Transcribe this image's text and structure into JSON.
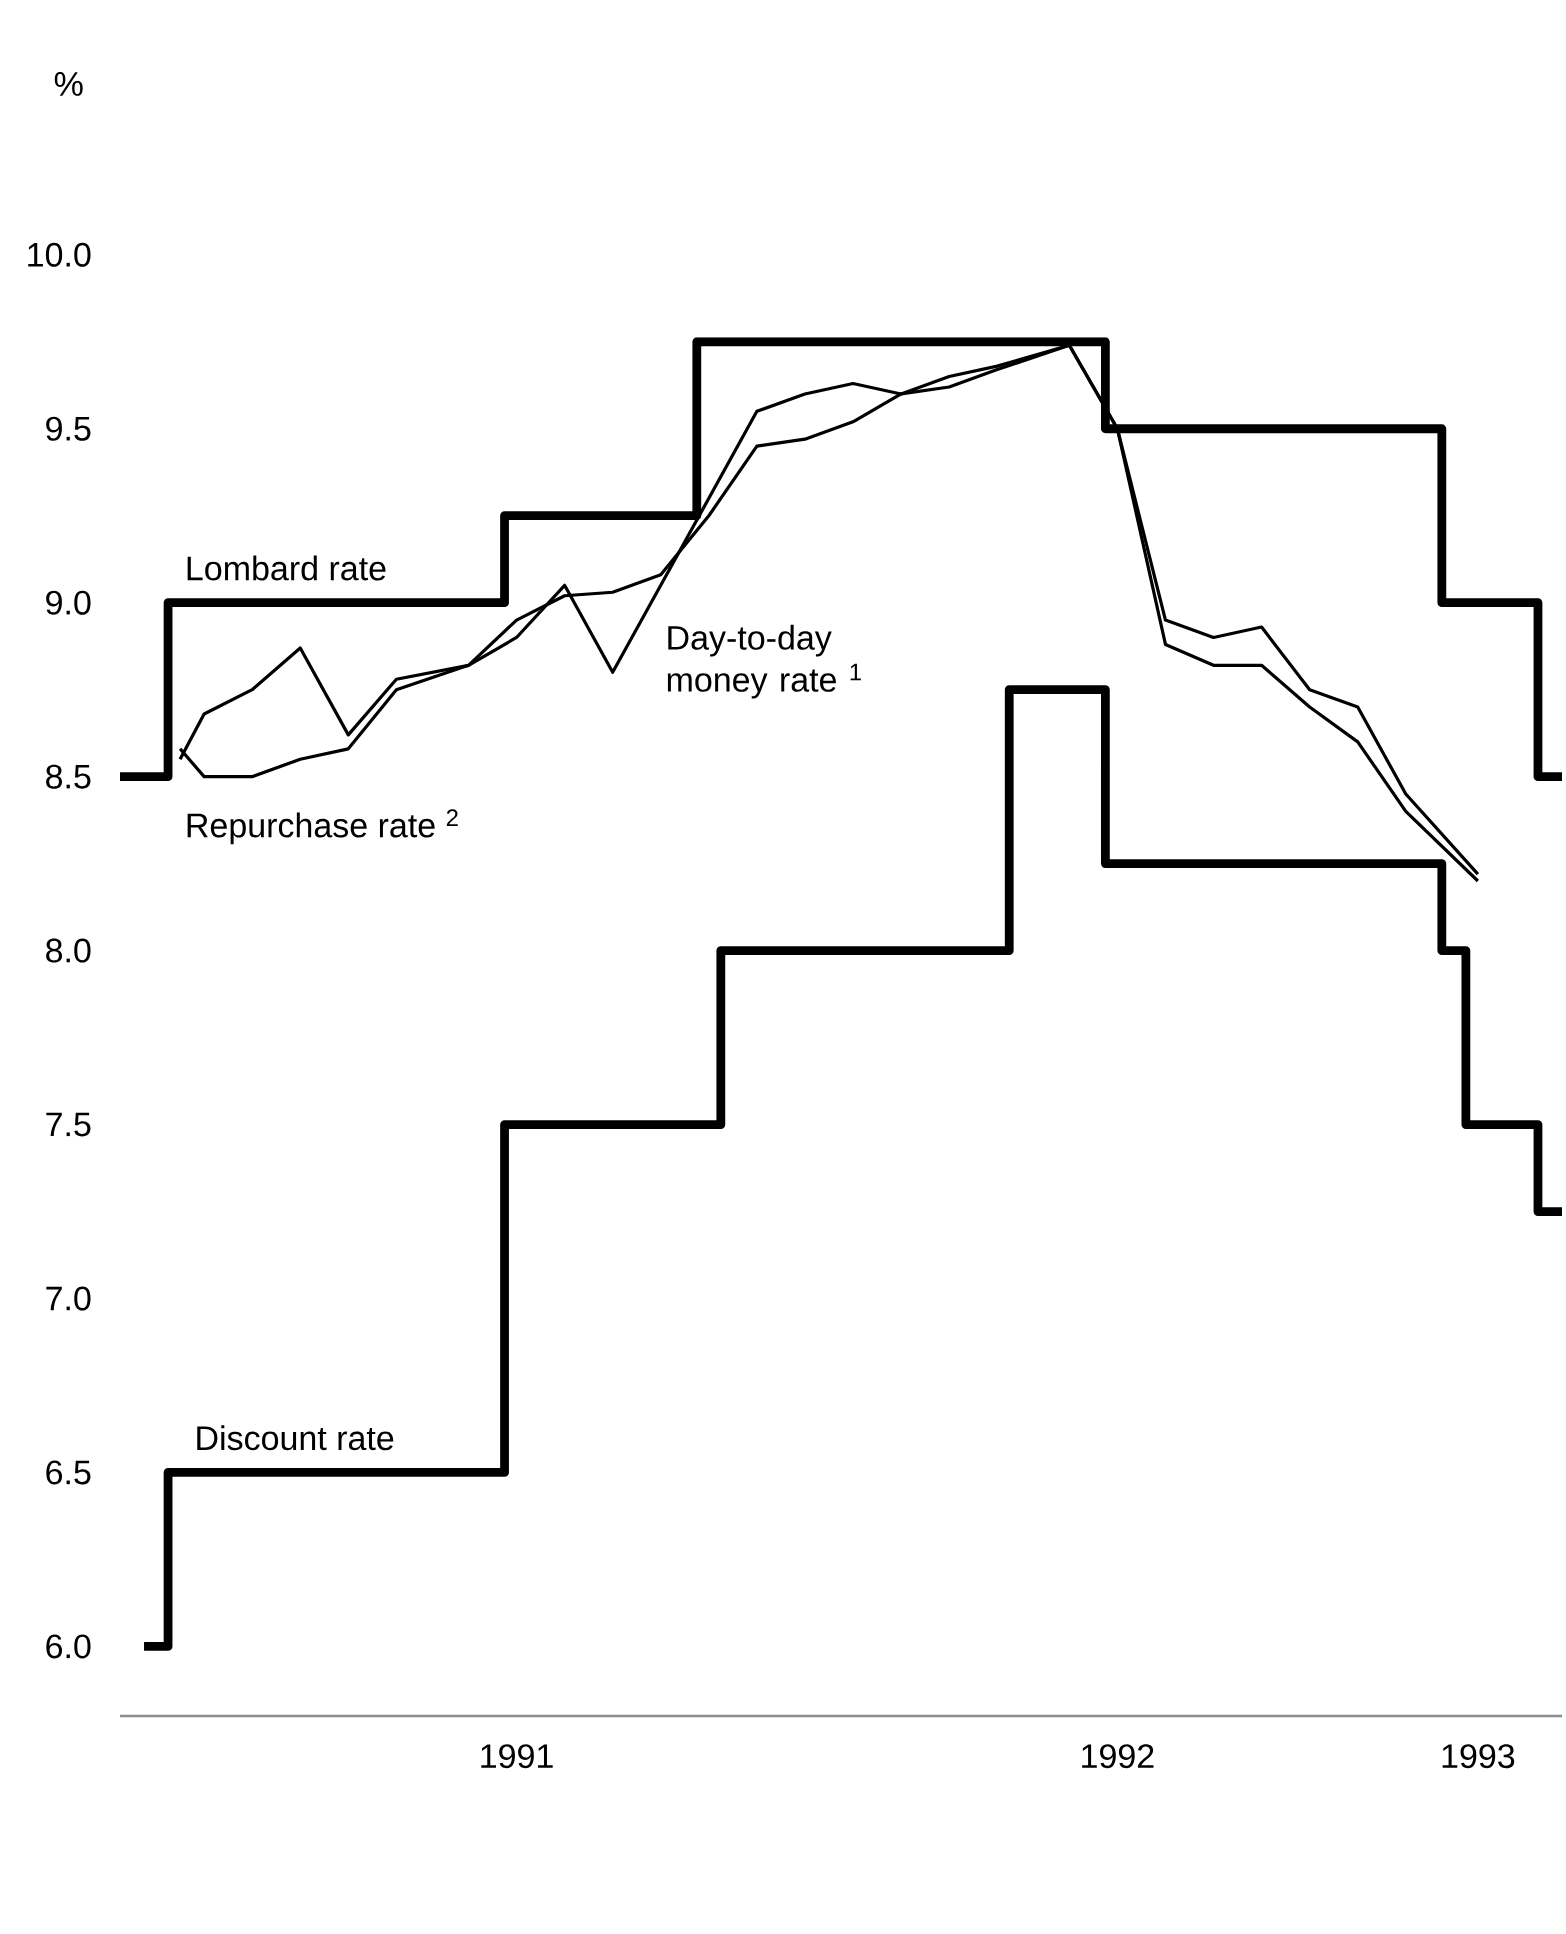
{
  "chart_data": {
    "type": "line",
    "ylabel": "%",
    "categories": [
      null,
      null,
      null,
      null,
      null,
      null,
      null,
      null,
      null,
      null,
      null,
      null,
      null,
      null,
      null,
      null,
      "1991",
      null,
      null,
      null,
      null,
      null,
      null,
      null,
      null,
      null,
      null,
      null,
      null,
      null,
      null,
      null,
      null,
      null,
      null,
      null,
      null,
      null,
      null,
      null,
      null,
      "1992",
      null,
      null,
      null,
      null,
      null,
      null,
      null,
      null,
      null,
      null,
      null,
      null,
      null,
      null,
      "1993",
      null,
      null,
      null
    ],
    "ylim": [
      5.8,
      10.0
    ],
    "yticks": [
      {
        "value": 6.0,
        "label": "6.0"
      },
      {
        "value": 6.5,
        "label": "6.5"
      },
      {
        "value": 7.0,
        "label": "7.0"
      },
      {
        "value": 7.5,
        "label": "7.5"
      },
      {
        "value": 8.0,
        "label": "8.0"
      },
      {
        "value": 8.5,
        "label": "8.5"
      },
      {
        "value": 9.0,
        "label": "9.0"
      },
      {
        "value": 9.5,
        "label": "9.5"
      },
      {
        "value": 10.0,
        "label": "10.0"
      }
    ],
    "series": [
      {
        "name": "Lombard rate",
        "type": "step",
        "color": "#000000",
        "values": [
          8.5,
          8.5,
          9.0,
          9.0,
          9.0,
          9.0,
          9.0,
          9.0,
          9.0,
          9.0,
          9.0,
          9.0,
          9.0,
          9.0,
          9.0,
          9.0,
          9.25,
          9.25,
          9.25,
          9.25,
          9.25,
          9.25,
          9.25,
          9.25,
          9.75,
          9.75,
          9.75,
          9.75,
          9.75,
          9.75,
          9.75,
          9.75,
          9.75,
          9.75,
          9.75,
          9.75,
          9.75,
          9.75,
          9.75,
          9.75,
          9.75,
          9.5,
          9.5,
          9.5,
          9.5,
          9.5,
          9.5,
          9.5,
          9.5,
          9.5,
          9.5,
          9.5,
          9.5,
          9.5,
          9.5,
          9.0,
          9.0,
          9.0,
          9.0,
          8.5
        ]
      },
      {
        "name": "Discount rate",
        "type": "step",
        "color": "#000000",
        "values": [
          null,
          6.0,
          6.5,
          6.5,
          6.5,
          6.5,
          6.5,
          6.5,
          6.5,
          6.5,
          6.5,
          6.5,
          6.5,
          6.5,
          6.5,
          6.5,
          7.5,
          7.5,
          7.5,
          7.5,
          7.5,
          7.5,
          7.5,
          7.5,
          7.5,
          8.0,
          8.0,
          8.0,
          8.0,
          8.0,
          8.0,
          8.0,
          8.0,
          8.0,
          8.0,
          8.0,
          8.0,
          8.75,
          8.75,
          8.75,
          8.75,
          8.25,
          8.25,
          8.25,
          8.25,
          8.25,
          8.25,
          8.25,
          8.25,
          8.25,
          8.25,
          8.25,
          8.25,
          8.25,
          8.25,
          8.0,
          7.5,
          7.5,
          7.5,
          7.25
        ]
      },
      {
        "name": "Day-to-day money rate $^{1}$",
        "type": "line",
        "color": "#000000",
        "values": [
          null,
          null,
          8.55,
          8.68,
          null,
          8.75,
          null,
          8.87,
          null,
          8.62,
          null,
          8.78,
          null,
          null,
          8.82,
          null,
          8.9,
          null,
          9.05,
          null,
          8.8,
          null,
          9.05,
          null,
          9.3,
          null,
          9.55,
          null,
          9.6,
          null,
          9.63,
          null,
          9.6,
          null,
          9.62,
          null,
          9.67,
          null,
          null,
          9.74,
          null,
          9.5,
          null,
          8.95,
          null,
          8.9,
          null,
          8.93,
          null,
          8.75,
          null,
          8.7,
          null,
          8.45,
          null,
          null,
          8.22,
          null,
          null,
          null
        ]
      },
      {
        "name": "Repurchase rate $^{2}$",
        "type": "line",
        "color": "#000000",
        "values": [
          null,
          null,
          8.58,
          8.5,
          null,
          8.5,
          null,
          8.55,
          null,
          8.58,
          null,
          8.75,
          null,
          null,
          8.82,
          null,
          8.95,
          null,
          9.02,
          null,
          9.03,
          null,
          9.08,
          null,
          9.25,
          null,
          9.45,
          null,
          9.47,
          null,
          9.52,
          null,
          9.6,
          null,
          9.65,
          null,
          9.68,
          null,
          null,
          9.74,
          null,
          9.5,
          null,
          8.88,
          null,
          8.82,
          null,
          8.82,
          null,
          8.7,
          null,
          8.6,
          null,
          8.4,
          null,
          null,
          8.2,
          null,
          null,
          null
        ]
      }
    ]
  }
}
